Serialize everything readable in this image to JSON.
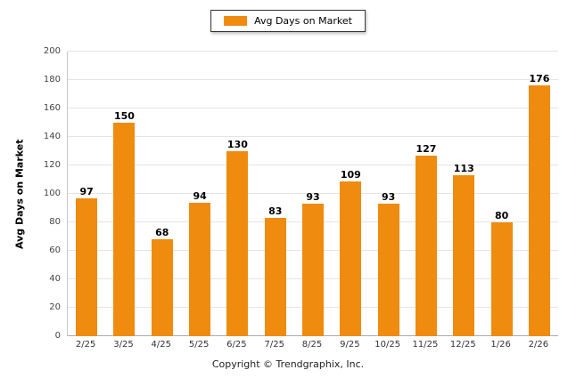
{
  "legend": {
    "label": "Avg Days on Market",
    "swatch_color": "#EF8B0F"
  },
  "y_axis_title": "Avg Days on Market",
  "footer_text": "Copyright © Trendgraphix, Inc.",
  "chart_data": {
    "type": "bar",
    "title": "Avg Days on Market",
    "categories": [
      "2/25",
      "3/25",
      "4/25",
      "5/25",
      "6/25",
      "7/25",
      "8/25",
      "9/25",
      "10/25",
      "11/25",
      "12/25",
      "1/26",
      "2/26"
    ],
    "values": [
      97,
      150,
      68,
      94,
      130,
      83,
      93,
      109,
      93,
      127,
      113,
      80,
      176
    ],
    "xlabel": "",
    "ylabel": "Avg Days on Market",
    "ylim": [
      0,
      200
    ],
    "ytick_step": 20,
    "yticks": [
      0,
      20,
      40,
      60,
      80,
      100,
      120,
      140,
      160,
      180,
      200
    ],
    "bar_color": "#EF8B0F",
    "grid": "horizontal",
    "legend_position": "top-center"
  }
}
